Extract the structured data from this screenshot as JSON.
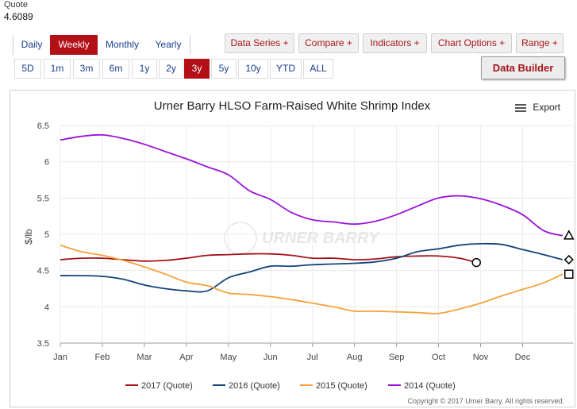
{
  "quote": {
    "label": "Quote",
    "value": "4.6089"
  },
  "period_tabs": [
    {
      "label": "Daily",
      "active": false
    },
    {
      "label": "Weekly",
      "active": true
    },
    {
      "label": "Monthly",
      "active": false
    },
    {
      "label": "Yearly",
      "active": false
    }
  ],
  "range_buttons": [
    {
      "label": "5D",
      "active": false
    },
    {
      "label": "1m",
      "active": false
    },
    {
      "label": "3m",
      "active": false
    },
    {
      "label": "6m",
      "active": false
    },
    {
      "label": "1y",
      "active": false
    },
    {
      "label": "2y",
      "active": false
    },
    {
      "label": "3y",
      "active": true
    },
    {
      "label": "5y",
      "active": false
    },
    {
      "label": "10y",
      "active": false
    },
    {
      "label": "YTD",
      "active": false
    },
    {
      "label": "ALL",
      "active": false
    }
  ],
  "menus": [
    {
      "label": "Data Series +"
    },
    {
      "label": "Compare +"
    },
    {
      "label": "Indicators +"
    },
    {
      "label": "Chart Options +"
    },
    {
      "label": "Range +"
    }
  ],
  "data_builder_label": "Data Builder",
  "export_label": "Export",
  "watermark_text": "URNER BARRY",
  "colors": {
    "accent": "#b30f16",
    "link": "#1a3e8c"
  },
  "chart_data": {
    "type": "line",
    "title": "Urner Barry HLSO Farm-Raised White Shrimp Index",
    "xlabel": "",
    "ylabel": "$/lb",
    "ylim": [
      3.5,
      6.5
    ],
    "yticks": [
      3.5,
      4,
      4.5,
      5,
      5.5,
      6,
      6.5
    ],
    "ytick_labels": [
      "3.5",
      "4",
      "4.5",
      "5",
      "5.5",
      "6",
      "6.5"
    ],
    "xlim": [
      0,
      12.2
    ],
    "xticks": [
      0,
      1,
      2,
      3,
      4,
      5,
      6,
      7,
      8,
      9,
      10,
      11
    ],
    "xtick_labels": [
      "Jan",
      "Feb",
      "Mar",
      "Apr",
      "May",
      "Jun",
      "Jul",
      "Aug",
      "Sep",
      "Oct",
      "Nov",
      "Dec"
    ],
    "copyright": "Copyright © 2017 Urner Barry. All rights reserved.",
    "legend_position": "bottom",
    "series": [
      {
        "name": "2017 (Quote)",
        "color": "#a3141a",
        "marker": "circle",
        "x": [
          0,
          0.5,
          1,
          1.5,
          2,
          2.5,
          3,
          3.5,
          4,
          4.5,
          5,
          5.5,
          6,
          6.5,
          7,
          7.5,
          8,
          8.5,
          9,
          9.5,
          9.9
        ],
        "y": [
          4.65,
          4.67,
          4.67,
          4.65,
          4.63,
          4.64,
          4.67,
          4.71,
          4.72,
          4.73,
          4.73,
          4.71,
          4.67,
          4.67,
          4.65,
          4.66,
          4.69,
          4.7,
          4.7,
          4.67,
          4.61
        ]
      },
      {
        "name": "2016 (Quote)",
        "color": "#14437a",
        "marker": "diamond",
        "x": [
          0,
          0.5,
          1,
          1.5,
          2,
          2.5,
          3,
          3.5,
          4,
          4.5,
          5,
          5.5,
          6,
          6.5,
          7,
          7.5,
          8,
          8.5,
          9,
          9.5,
          10,
          10.5,
          11,
          11.5,
          11.95
        ],
        "y": [
          4.43,
          4.43,
          4.42,
          4.38,
          4.3,
          4.25,
          4.22,
          4.22,
          4.4,
          4.48,
          4.56,
          4.56,
          4.58,
          4.59,
          4.6,
          4.62,
          4.67,
          4.76,
          4.8,
          4.85,
          4.87,
          4.86,
          4.79,
          4.72,
          4.65
        ]
      },
      {
        "name": "2015 (Quote)",
        "color": "#f6a13a",
        "marker": "square",
        "x": [
          0,
          0.5,
          1,
          1.5,
          2,
          2.5,
          3,
          3.5,
          4,
          4.5,
          5,
          5.5,
          6,
          6.5,
          7,
          7.5,
          8,
          8.5,
          9,
          9.5,
          10,
          10.5,
          11,
          11.5,
          11.95
        ],
        "y": [
          4.85,
          4.76,
          4.71,
          4.64,
          4.55,
          4.45,
          4.34,
          4.29,
          4.19,
          4.17,
          4.14,
          4.1,
          4.05,
          4.0,
          3.94,
          3.94,
          3.93,
          3.92,
          3.91,
          3.97,
          4.05,
          4.15,
          4.24,
          4.33,
          4.45
        ]
      },
      {
        "name": "2014 (Quote)",
        "color": "#9b12d9",
        "marker": "triangle",
        "x": [
          0,
          0.5,
          1,
          1.5,
          2,
          2.5,
          3,
          3.5,
          4,
          4.5,
          5,
          5.5,
          6,
          6.5,
          7,
          7.5,
          8,
          8.5,
          9,
          9.5,
          10,
          10.5,
          11,
          11.5,
          11.95
        ],
        "y": [
          6.3,
          6.35,
          6.37,
          6.32,
          6.24,
          6.14,
          6.04,
          5.93,
          5.82,
          5.6,
          5.48,
          5.3,
          5.2,
          5.17,
          5.14,
          5.18,
          5.27,
          5.39,
          5.5,
          5.53,
          5.49,
          5.4,
          5.27,
          5.05,
          4.98
        ]
      }
    ]
  }
}
